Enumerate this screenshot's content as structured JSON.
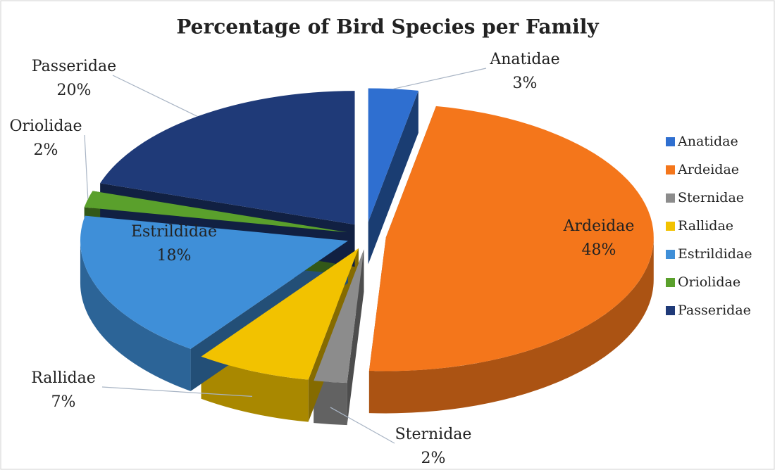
{
  "chart_data": {
    "type": "pie3d",
    "title": "Percentage of Bird Species per Family",
    "categories": [
      "Anatidae",
      "Ardeidae",
      "Sternidae",
      "Rallidae",
      "Estrildidae",
      "Oriolidae",
      "Passeridae"
    ],
    "values": [
      3,
      48,
      2,
      7,
      18,
      2,
      20
    ],
    "value_labels": [
      "3%",
      "48%",
      "2%",
      "7%",
      "18%",
      "2%",
      "20%"
    ],
    "colors": [
      "#2f6fd0",
      "#f4761b",
      "#8c8c8c",
      "#f2c200",
      "#3f8fd8",
      "#5aa02c",
      "#1f3a78"
    ],
    "legend": "right"
  }
}
